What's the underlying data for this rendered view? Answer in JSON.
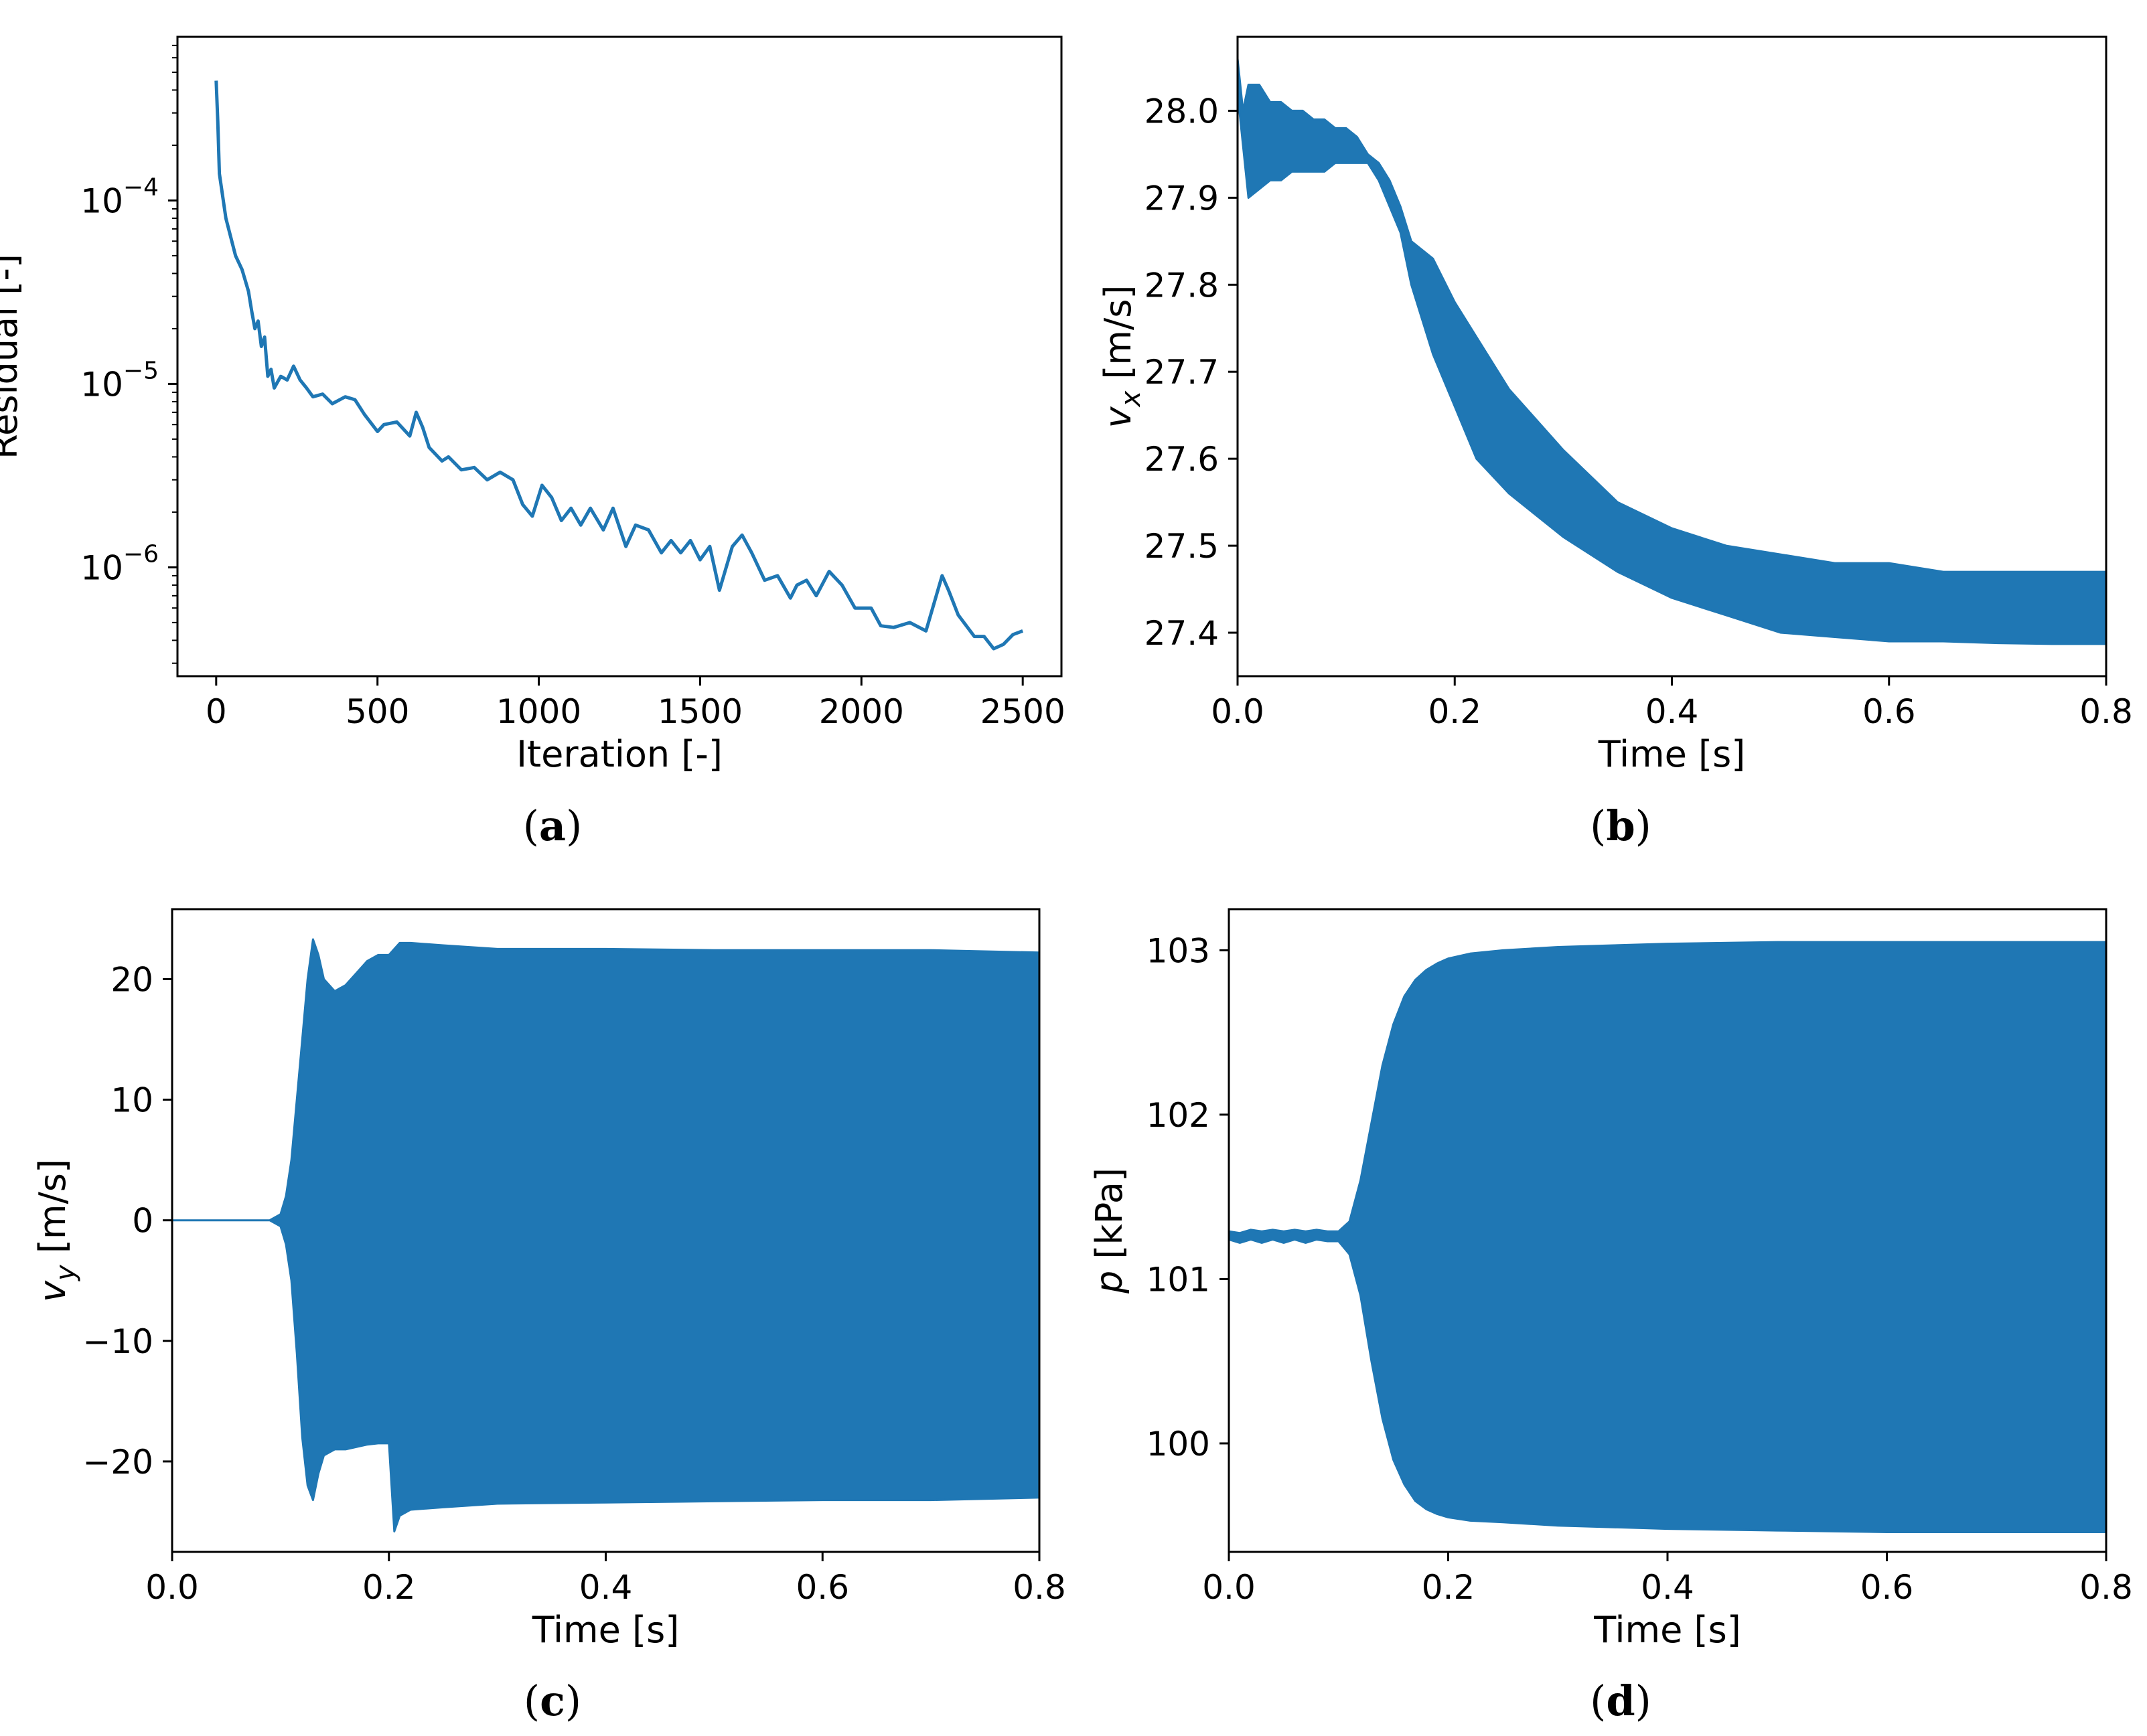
{
  "colors": {
    "series": "#1f77b4",
    "axes": "#000000",
    "background": "#ffffff"
  },
  "chart_data": [
    {
      "id": "a",
      "type": "line",
      "caption_letter": "a",
      "title": "",
      "xlabel": "Iteration [-]",
      "ylabel": "Residual [-]",
      "yscale": "log",
      "xlim": [
        -120,
        2620
      ],
      "ylim": [
        2.55e-07,
        0.00078
      ],
      "xticks": [
        0,
        500,
        1000,
        1500,
        2000,
        2500
      ],
      "xtick_labels": [
        "0",
        "500",
        "1000",
        "1500",
        "2000",
        "2500"
      ],
      "yticks": [
        0.0001,
        1e-05,
        1e-06
      ],
      "ytick_labels": [
        {
          "base": "10",
          "exp": "−4"
        },
        {
          "base": "10",
          "exp": "−5"
        },
        {
          "base": "10",
          "exp": "−6"
        }
      ],
      "series": [
        {
          "name": "Residual",
          "x": [
            0,
            5,
            10,
            30,
            60,
            80,
            100,
            110,
            120,
            130,
            140,
            150,
            160,
            170,
            180,
            200,
            220,
            240,
            260,
            280,
            300,
            330,
            360,
            400,
            430,
            460,
            500,
            520,
            560,
            600,
            620,
            640,
            660,
            700,
            720,
            760,
            800,
            840,
            880,
            920,
            950,
            980,
            1010,
            1040,
            1070,
            1100,
            1130,
            1160,
            1200,
            1230,
            1270,
            1300,
            1340,
            1380,
            1410,
            1440,
            1470,
            1500,
            1530,
            1560,
            1600,
            1630,
            1660,
            1700,
            1740,
            1780,
            1800,
            1830,
            1860,
            1900,
            1940,
            1980,
            2030,
            2060,
            2100,
            2150,
            2200,
            2250,
            2270,
            2300,
            2350,
            2380,
            2410,
            2440,
            2470,
            2500
          ],
          "values": [
            0.00045,
            0.00027,
            0.00014,
            8e-05,
            5e-05,
            4.2e-05,
            3.2e-05,
            2.5e-05,
            2e-05,
            2.2e-05,
            1.6e-05,
            1.8e-05,
            1.1e-05,
            1.2e-05,
            9.5e-06,
            1.1e-05,
            1.05e-05,
            1.25e-05,
            1.05e-05,
            9.5e-06,
            8.5e-06,
            8.8e-06,
            7.8e-06,
            8.5e-06,
            8.2e-06,
            6.8e-06,
            5.5e-06,
            6e-06,
            6.2e-06,
            5.2e-06,
            7e-06,
            5.8e-06,
            4.5e-06,
            3.8e-06,
            4e-06,
            3.4e-06,
            3.5e-06,
            3e-06,
            3.3e-06,
            3e-06,
            2.2e-06,
            1.9e-06,
            2.8e-06,
            2.4e-06,
            1.8e-06,
            2.1e-06,
            1.7e-06,
            2.1e-06,
            1.6e-06,
            2.1e-06,
            1.3e-06,
            1.7e-06,
            1.6e-06,
            1.2e-06,
            1.4e-06,
            1.2e-06,
            1.4e-06,
            1.1e-06,
            1.3e-06,
            7.5e-07,
            1.3e-06,
            1.5e-06,
            1.2e-06,
            8.5e-07,
            9e-07,
            6.8e-07,
            8e-07,
            8.5e-07,
            7e-07,
            9.5e-07,
            8e-07,
            6e-07,
            6e-07,
            4.8e-07,
            4.7e-07,
            5e-07,
            4.5e-07,
            9e-07,
            7.5e-07,
            5.5e-07,
            4.2e-07,
            4.2e-07,
            3.6e-07,
            3.8e-07,
            4.3e-07,
            4.5e-07
          ]
        }
      ]
    },
    {
      "id": "b",
      "type": "line",
      "caption_letter": "b",
      "title": "",
      "xlabel": "Time [s]",
      "ylabel": {
        "var": "v",
        "sub": "x",
        "unit": "[m/s]"
      },
      "xlim": [
        0,
        0.8
      ],
      "ylim": [
        27.35,
        28.085
      ],
      "xticks": [
        0.0,
        0.2,
        0.4,
        0.6,
        0.8
      ],
      "xtick_labels": [
        "0.0",
        "0.2",
        "0.4",
        "0.6",
        "0.8"
      ],
      "yticks": [
        27.4,
        27.5,
        27.6,
        27.7,
        27.8,
        27.9,
        28.0
      ],
      "ytick_labels": [
        "27.4",
        "27.5",
        "27.6",
        "27.7",
        "27.8",
        "27.9",
        "28.0"
      ],
      "series": [
        {
          "name": "v_x",
          "x": [
            0.0,
            0.005,
            0.01,
            0.02,
            0.03,
            0.04,
            0.05,
            0.06,
            0.07,
            0.08,
            0.09,
            0.1,
            0.11,
            0.12,
            0.13,
            0.14,
            0.15,
            0.16,
            0.18,
            0.2,
            0.22,
            0.25,
            0.3,
            0.35,
            0.4,
            0.45,
            0.5,
            0.55,
            0.6,
            0.65,
            0.7,
            0.75,
            0.8
          ],
          "upper": [
            28.06,
            28.0,
            28.03,
            28.03,
            28.01,
            28.01,
            28.0,
            28.0,
            27.99,
            27.99,
            27.98,
            27.98,
            27.97,
            27.95,
            27.94,
            27.92,
            27.89,
            27.85,
            27.83,
            27.78,
            27.74,
            27.68,
            27.61,
            27.55,
            27.52,
            27.5,
            27.49,
            27.48,
            27.48,
            27.47,
            27.47,
            27.47,
            27.47
          ],
          "lower": [
            28.02,
            27.96,
            27.9,
            27.91,
            27.92,
            27.92,
            27.93,
            27.93,
            27.93,
            27.93,
            27.94,
            27.94,
            27.94,
            27.94,
            27.92,
            27.89,
            27.86,
            27.8,
            27.72,
            27.66,
            27.6,
            27.56,
            27.51,
            27.47,
            27.44,
            27.42,
            27.4,
            27.395,
            27.39,
            27.39,
            27.388,
            27.387,
            27.387
          ]
        }
      ]
    },
    {
      "id": "c",
      "type": "line",
      "caption_letter": "c",
      "title": "",
      "xlabel": "Time [s]",
      "ylabel": {
        "var": "v",
        "sub": "y",
        "unit": "[m/s]"
      },
      "xlim": [
        0,
        0.8
      ],
      "ylim": [
        -27.5,
        25.8
      ],
      "xticks": [
        0.0,
        0.2,
        0.4,
        0.6,
        0.8
      ],
      "xtick_labels": [
        "0.0",
        "0.2",
        "0.4",
        "0.6",
        "0.8"
      ],
      "yticks": [
        20,
        10,
        0,
        -10,
        -20
      ],
      "ytick_labels": [
        "20",
        "10",
        "0",
        "−10",
        "−20"
      ],
      "series": [
        {
          "name": "v_y",
          "x": [
            0.0,
            0.09,
            0.1,
            0.105,
            0.11,
            0.115,
            0.12,
            0.125,
            0.13,
            0.135,
            0.14,
            0.15,
            0.16,
            0.17,
            0.18,
            0.19,
            0.2,
            0.205,
            0.21,
            0.22,
            0.25,
            0.3,
            0.4,
            0.5,
            0.6,
            0.7,
            0.8
          ],
          "upper": [
            0.0,
            0.0,
            0.5,
            2.0,
            5.0,
            10.0,
            15.0,
            20.0,
            23.3,
            22.0,
            20.0,
            19.0,
            19.5,
            20.5,
            21.5,
            22.0,
            22.0,
            22.5,
            23.0,
            23.0,
            22.8,
            22.5,
            22.5,
            22.4,
            22.4,
            22.4,
            22.2
          ],
          "lower": [
            0.0,
            0.0,
            -0.5,
            -2.0,
            -5.0,
            -11.0,
            -18.0,
            -22.0,
            -23.2,
            -21.0,
            -19.5,
            -19.0,
            -19.0,
            -18.8,
            -18.6,
            -18.5,
            -18.5,
            -25.8,
            -24.5,
            -24.0,
            -23.8,
            -23.5,
            -23.4,
            -23.3,
            -23.2,
            -23.2,
            -23.0
          ]
        }
      ]
    },
    {
      "id": "d",
      "type": "line",
      "caption_letter": "d",
      "title": "",
      "xlabel": "Time [s]",
      "ylabel": {
        "var": "p",
        "sub": "",
        "unit": "[kPa]"
      },
      "xlim": [
        0,
        0.8
      ],
      "ylim": [
        99.34,
        103.25
      ],
      "xticks": [
        0.0,
        0.2,
        0.4,
        0.6,
        0.8
      ],
      "xtick_labels": [
        "0.0",
        "0.2",
        "0.4",
        "0.6",
        "0.8"
      ],
      "yticks": [
        103,
        102,
        101,
        100
      ],
      "ytick_labels": [
        "103",
        "102",
        "101",
        "100"
      ],
      "series": [
        {
          "name": "p",
          "x": [
            0.0,
            0.01,
            0.02,
            0.03,
            0.04,
            0.05,
            0.06,
            0.07,
            0.08,
            0.09,
            0.1,
            0.11,
            0.12,
            0.13,
            0.14,
            0.15,
            0.16,
            0.17,
            0.18,
            0.19,
            0.2,
            0.22,
            0.25,
            0.3,
            0.4,
            0.5,
            0.6,
            0.7,
            0.8
          ],
          "upper": [
            101.29,
            101.28,
            101.3,
            101.29,
            101.3,
            101.29,
            101.3,
            101.29,
            101.3,
            101.29,
            101.29,
            101.35,
            101.6,
            101.95,
            102.3,
            102.55,
            102.72,
            102.82,
            102.88,
            102.92,
            102.95,
            102.98,
            103.0,
            103.02,
            103.04,
            103.05,
            103.05,
            103.05,
            103.05
          ],
          "lower": [
            101.24,
            101.22,
            101.24,
            101.22,
            101.24,
            101.22,
            101.24,
            101.22,
            101.24,
            101.23,
            101.23,
            101.15,
            100.9,
            100.5,
            100.15,
            99.9,
            99.75,
            99.65,
            99.6,
            99.57,
            99.55,
            99.53,
            99.52,
            99.5,
            99.48,
            99.47,
            99.46,
            99.46,
            99.46
          ]
        }
      ]
    }
  ]
}
